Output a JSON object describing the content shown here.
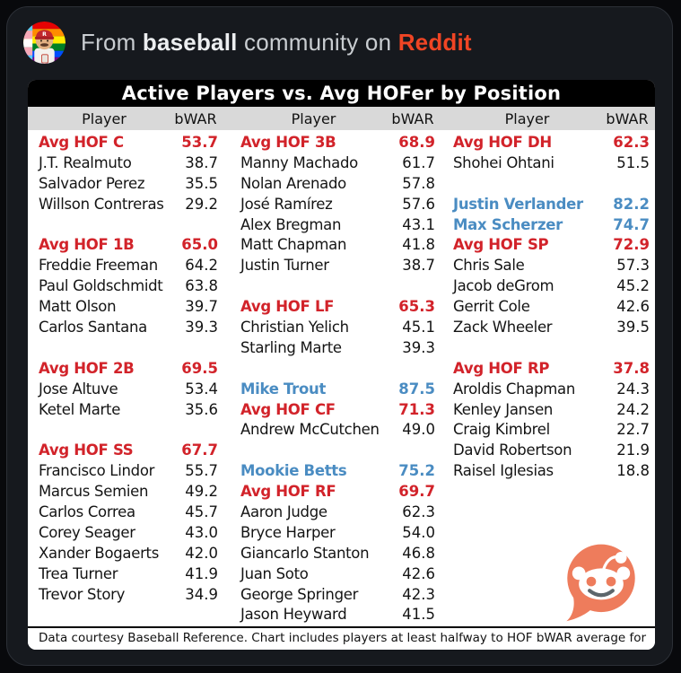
{
  "embed_header": {
    "from": "From",
    "community": "baseball",
    "middle": "community on",
    "site": "Reddit"
  },
  "colors": {
    "hof_red": "#d2232a",
    "star_blue": "#4a8cc2",
    "reddit_orange": "#f04524",
    "snoo_orange": "#ee7c5c",
    "snoo_mouth": "#5c666b",
    "header_row_bg": "#d9d9d9",
    "title_bar_bg": "#000000",
    "card_bg": "#ffffff",
    "embed_bg": "#16191e",
    "page_bg": "#08090c"
  },
  "chart_data": {
    "type": "table",
    "title": "Active Players vs. Avg HOFer by Position",
    "columns": [
      "Player",
      "bWAR"
    ],
    "note": "Data courtesy Baseball Reference. Chart includes players at least halfway to HOF bWAR average for position.",
    "row_styles": {
      "hof": "red bold = average Hall of Famer bWAR at position",
      "star": "blue bold = active player already above HOF average",
      "player": "black = active player"
    },
    "groups": [
      {
        "position": "C",
        "column": 1,
        "rows": [
          {
            "player": "Avg HOF C",
            "bwar": 53.7,
            "type": "hof"
          },
          {
            "player": "J.T. Realmuto",
            "bwar": 38.7,
            "type": "player"
          },
          {
            "player": "Salvador Perez",
            "bwar": 35.5,
            "type": "player"
          },
          {
            "player": "Willson Contreras",
            "bwar": 29.2,
            "type": "player"
          }
        ]
      },
      {
        "position": "1B",
        "column": 1,
        "rows": [
          {
            "player": "Avg HOF 1B",
            "bwar": 65.0,
            "type": "hof"
          },
          {
            "player": "Freddie Freeman",
            "bwar": 64.2,
            "type": "player"
          },
          {
            "player": "Paul Goldschmidt",
            "bwar": 63.8,
            "type": "player"
          },
          {
            "player": "Matt Olson",
            "bwar": 39.7,
            "type": "player"
          },
          {
            "player": "Carlos Santana",
            "bwar": 39.3,
            "type": "player"
          }
        ]
      },
      {
        "position": "2B",
        "column": 1,
        "rows": [
          {
            "player": "Avg HOF 2B",
            "bwar": 69.5,
            "type": "hof"
          },
          {
            "player": "Jose Altuve",
            "bwar": 53.4,
            "type": "player"
          },
          {
            "player": "Ketel Marte",
            "bwar": 35.6,
            "type": "player"
          }
        ]
      },
      {
        "position": "SS",
        "column": 1,
        "rows": [
          {
            "player": "Avg HOF SS",
            "bwar": 67.7,
            "type": "hof"
          },
          {
            "player": "Francisco Lindor",
            "bwar": 55.7,
            "type": "player"
          },
          {
            "player": "Marcus Semien",
            "bwar": 49.2,
            "type": "player"
          },
          {
            "player": "Carlos Correa",
            "bwar": 45.7,
            "type": "player"
          },
          {
            "player": "Corey Seager",
            "bwar": 43.0,
            "type": "player"
          },
          {
            "player": "Xander Bogaerts",
            "bwar": 42.0,
            "type": "player"
          },
          {
            "player": "Trea Turner",
            "bwar": 41.9,
            "type": "player"
          },
          {
            "player": "Trevor Story",
            "bwar": 34.9,
            "type": "player"
          }
        ]
      },
      {
        "position": "3B",
        "column": 2,
        "rows": [
          {
            "player": "Avg HOF 3B",
            "bwar": 68.9,
            "type": "hof"
          },
          {
            "player": "Manny Machado",
            "bwar": 61.7,
            "type": "player"
          },
          {
            "player": "Nolan Arenado",
            "bwar": 57.8,
            "type": "player"
          },
          {
            "player": "José Ramírez",
            "bwar": 57.6,
            "type": "player"
          },
          {
            "player": "Alex Bregman",
            "bwar": 43.1,
            "type": "player"
          },
          {
            "player": "Matt Chapman",
            "bwar": 41.8,
            "type": "player"
          },
          {
            "player": "Justin Turner",
            "bwar": 38.7,
            "type": "player"
          }
        ]
      },
      {
        "position": "LF",
        "column": 2,
        "rows": [
          {
            "player": "Avg HOF LF",
            "bwar": 65.3,
            "type": "hof"
          },
          {
            "player": "Christian Yelich",
            "bwar": 45.1,
            "type": "player"
          },
          {
            "player": "Starling Marte",
            "bwar": 39.3,
            "type": "player"
          }
        ]
      },
      {
        "position": "CF",
        "column": 2,
        "rows": [
          {
            "player": "Mike Trout",
            "bwar": 87.5,
            "type": "star"
          },
          {
            "player": "Avg HOF CF",
            "bwar": 71.3,
            "type": "hof"
          },
          {
            "player": "Andrew McCutchen",
            "bwar": 49.0,
            "type": "player"
          }
        ]
      },
      {
        "position": "RF",
        "column": 2,
        "rows": [
          {
            "player": "Mookie Betts",
            "bwar": 75.2,
            "type": "star"
          },
          {
            "player": "Avg HOF RF",
            "bwar": 69.7,
            "type": "hof"
          },
          {
            "player": "Aaron Judge",
            "bwar": 62.3,
            "type": "player"
          },
          {
            "player": "Bryce Harper",
            "bwar": 54.0,
            "type": "player"
          },
          {
            "player": "Giancarlo Stanton",
            "bwar": 46.8,
            "type": "player"
          },
          {
            "player": "Juan Soto",
            "bwar": 42.6,
            "type": "player"
          },
          {
            "player": "George Springer",
            "bwar": 42.3,
            "type": "player"
          },
          {
            "player": "Jason Heyward",
            "bwar": 41.5,
            "type": "player"
          }
        ]
      },
      {
        "position": "DH",
        "column": 3,
        "rows": [
          {
            "player": "Avg HOF DH",
            "bwar": 62.3,
            "type": "hof"
          },
          {
            "player": "Shohei Ohtani",
            "bwar": 51.5,
            "type": "player"
          }
        ]
      },
      {
        "position": "SP",
        "column": 3,
        "rows": [
          {
            "player": "Justin Verlander",
            "bwar": 82.2,
            "type": "star"
          },
          {
            "player": "Max Scherzer",
            "bwar": 74.7,
            "type": "star"
          },
          {
            "player": "Avg HOF SP",
            "bwar": 72.9,
            "type": "hof"
          },
          {
            "player": "Chris Sale",
            "bwar": 57.3,
            "type": "player"
          },
          {
            "player": "Jacob deGrom",
            "bwar": 45.2,
            "type": "player"
          },
          {
            "player": "Gerrit Cole",
            "bwar": 42.6,
            "type": "player"
          },
          {
            "player": "Zack Wheeler",
            "bwar": 39.5,
            "type": "player"
          }
        ]
      },
      {
        "position": "RP",
        "column": 3,
        "rows": [
          {
            "player": "Avg HOF RP",
            "bwar": 37.8,
            "type": "hof"
          },
          {
            "player": "Aroldis Chapman",
            "bwar": 24.3,
            "type": "player"
          },
          {
            "player": "Kenley Jansen",
            "bwar": 24.2,
            "type": "player"
          },
          {
            "player": "Craig Kimbrel",
            "bwar": 22.7,
            "type": "player"
          },
          {
            "player": "David Robertson",
            "bwar": 21.9,
            "type": "player"
          },
          {
            "player": "Raisel Iglesias",
            "bwar": 18.8,
            "type": "player"
          }
        ]
      }
    ]
  }
}
